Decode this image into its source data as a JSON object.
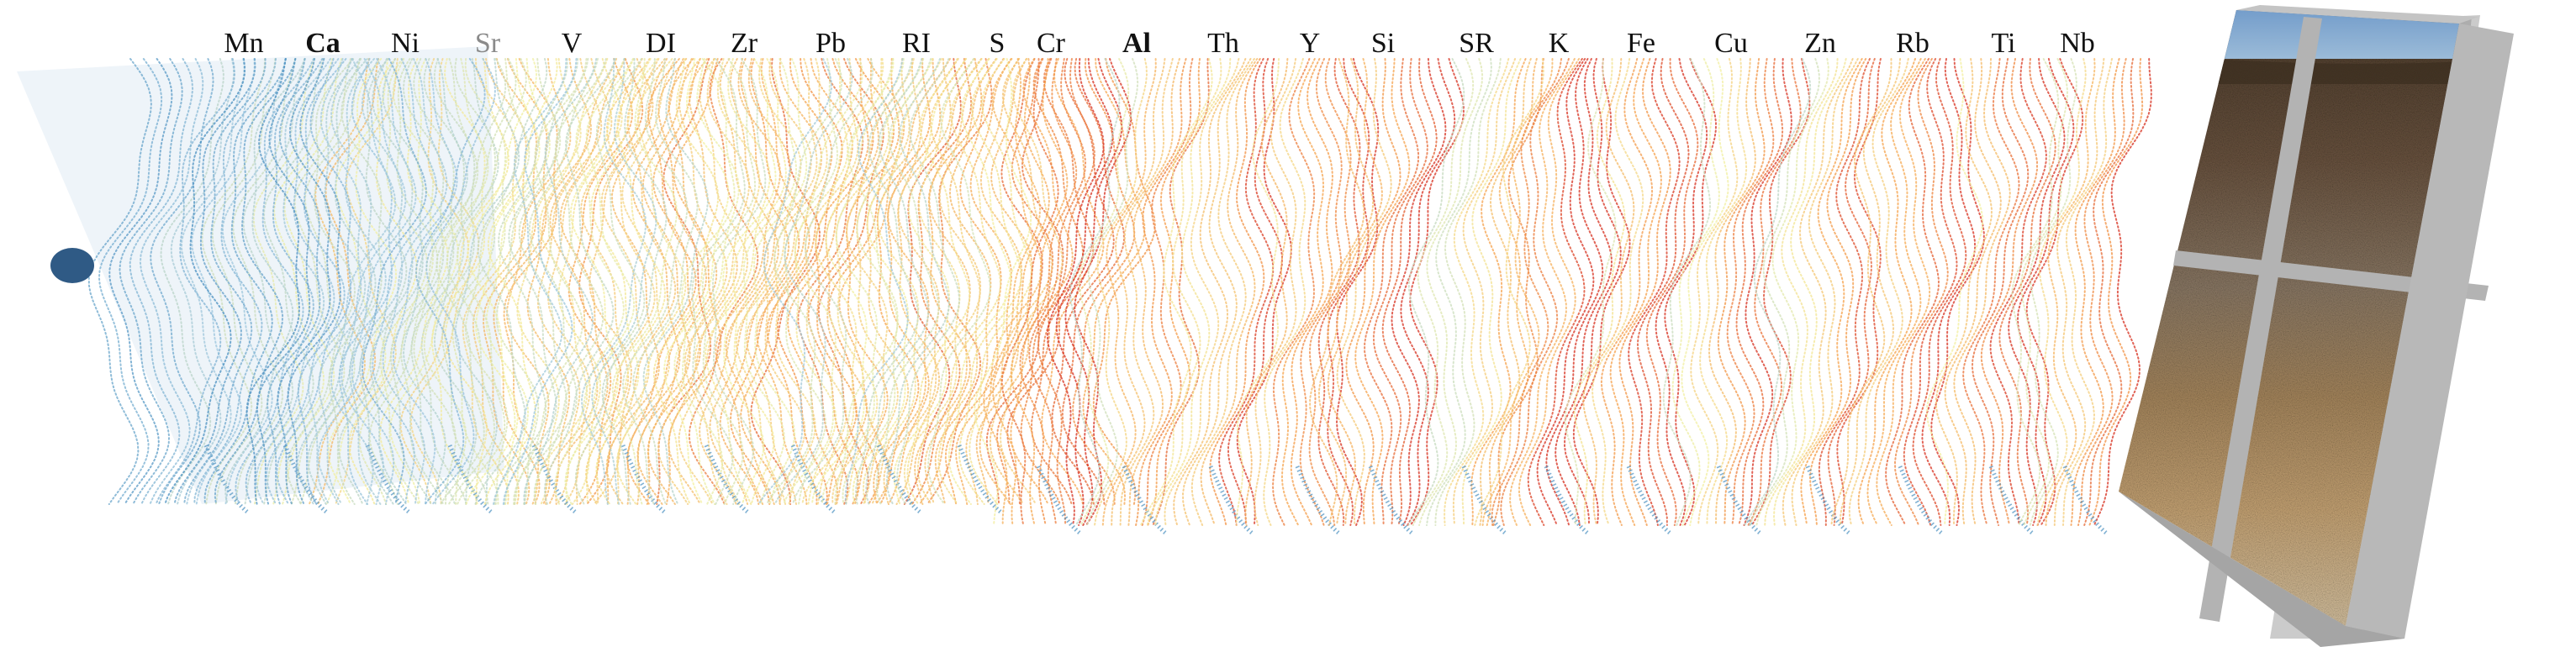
{
  "figure": {
    "element_labels": [
      {
        "text": "Mn",
        "style": "normal"
      },
      {
        "text": "Ca",
        "style": "bold"
      },
      {
        "text": "Ni",
        "style": "normal"
      },
      {
        "text": "Sr",
        "style": "muted"
      },
      {
        "text": "V",
        "style": "normal"
      },
      {
        "text": "DI",
        "style": "normal"
      },
      {
        "text": "Zr",
        "style": "normal"
      },
      {
        "text": "Pb",
        "style": "normal"
      },
      {
        "text": "RI",
        "style": "normal"
      },
      {
        "text": "S",
        "style": "normal"
      },
      {
        "text": "Cr",
        "style": "normal"
      },
      {
        "text": "Al",
        "style": "bold"
      },
      {
        "text": "Th",
        "style": "normal"
      },
      {
        "text": "Y",
        "style": "normal"
      },
      {
        "text": "Si",
        "style": "normal"
      },
      {
        "text": "SR",
        "style": "normal"
      },
      {
        "text": "K",
        "style": "normal"
      },
      {
        "text": "Fe",
        "style": "normal"
      },
      {
        "text": "Cu",
        "style": "normal"
      },
      {
        "text": "Zn",
        "style": "normal"
      },
      {
        "text": "Rb",
        "style": "normal"
      },
      {
        "text": "Ti",
        "style": "normal"
      },
      {
        "text": "Nb",
        "style": "normal"
      }
    ],
    "colormap": [
      "#4a90c0",
      "#9cc6dd",
      "#f3f0a0",
      "#f5a04a",
      "#d7301f"
    ],
    "colormap_order": "blue-yellow-red",
    "marker_color": "#2f5a85",
    "soil_profile": {
      "frame_color": "#b3b3b3",
      "sky_color": "#7fa6cf",
      "soil_colors": [
        "#4a3a2a",
        "#6b5440",
        "#8c7a66",
        "#a8885e",
        "#c9a676",
        "#d8c6a6"
      ]
    }
  }
}
